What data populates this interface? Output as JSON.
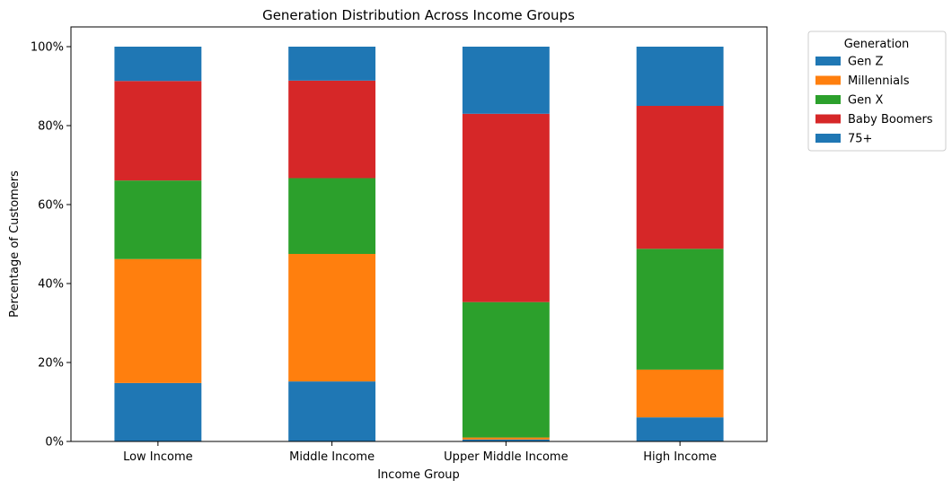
{
  "chart_data": {
    "type": "bar",
    "stacked": true,
    "title": "Generation Distribution Across Income Groups",
    "xlabel": "Income Group",
    "ylabel": "Percentage of Customers",
    "ylim": [
      0,
      100
    ],
    "yticks": [
      0,
      20,
      40,
      60,
      80,
      100
    ],
    "ytick_labels": [
      "0%",
      "20%",
      "40%",
      "60%",
      "80%",
      "100%"
    ],
    "categories": [
      "Low Income",
      "Middle Income",
      "Upper Middle Income",
      "High Income"
    ],
    "grid": false,
    "legend": {
      "title": "Generation",
      "placement": "outside-top-right"
    },
    "series": [
      {
        "name": "Gen Z",
        "color": "#1f77b4",
        "values": [
          14.8,
          15.2,
          0.5,
          6.1
        ]
      },
      {
        "name": "Millennials",
        "color": "#ff7f0e",
        "values": [
          31.4,
          32.3,
          0.5,
          12.1
        ]
      },
      {
        "name": "Gen X",
        "color": "#2ca02c",
        "values": [
          19.9,
          19.2,
          34.3,
          30.6
        ]
      },
      {
        "name": "Baby Boomers",
        "color": "#d62728",
        "values": [
          25.2,
          24.7,
          47.7,
          36.2
        ]
      },
      {
        "name": "75+",
        "color": "#1f77b4",
        "values": [
          8.7,
          8.6,
          17.0,
          15.0
        ]
      }
    ]
  }
}
